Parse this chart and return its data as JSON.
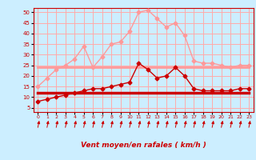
{
  "x": [
    0,
    1,
    2,
    3,
    4,
    5,
    6,
    7,
    8,
    9,
    10,
    11,
    12,
    13,
    14,
    15,
    16,
    17,
    18,
    19,
    20,
    21,
    22,
    23
  ],
  "background_color": "#cceeff",
  "grid_color": "#ffaaaa",
  "xlabel": "Vent moyen/en rafales ( km/h )",
  "xlabel_color": "#cc0000",
  "yticks": [
    5,
    10,
    15,
    20,
    25,
    30,
    35,
    40,
    45,
    50
  ],
  "ylim": [
    3,
    52
  ],
  "xlim": [
    -0.5,
    23.5
  ],
  "line1_y": [
    15,
    19,
    23,
    25,
    28,
    34,
    24,
    29,
    35,
    36,
    41,
    50,
    51,
    47,
    43,
    45,
    39,
    27,
    26,
    26,
    25,
    24,
    25,
    25
  ],
  "line1_color": "#ff9999",
  "line1_marker": "D",
  "line1_markersize": 2.5,
  "line1_lw": 1.0,
  "line2_y": [
    24,
    24,
    24,
    24,
    24,
    24,
    24,
    24,
    24,
    24,
    24,
    24,
    24,
    24,
    24,
    24,
    24,
    24,
    24,
    24,
    24,
    24,
    24,
    24
  ],
  "line2_color": "#ff9999",
  "line2_lw": 2.0,
  "line3_y": [
    8,
    9,
    10,
    11,
    12,
    13,
    14,
    14,
    15,
    16,
    17,
    26,
    23,
    19,
    20,
    24,
    20,
    14,
    13,
    13,
    13,
    13,
    14,
    14
  ],
  "line3_color": "#cc0000",
  "line3_marker": "D",
  "line3_markersize": 2.5,
  "line3_lw": 1.0,
  "line4_y": [
    12,
    12,
    12,
    12,
    12,
    12,
    12,
    12,
    12,
    12,
    12,
    12,
    12,
    12,
    12,
    12,
    12,
    12,
    12,
    12,
    12,
    12,
    12,
    12
  ],
  "line4_color": "#cc0000",
  "line4_lw": 2.5,
  "arrow_color": "#cc0000",
  "tick_color": "#cc0000",
  "spine_color": "#cc0000"
}
